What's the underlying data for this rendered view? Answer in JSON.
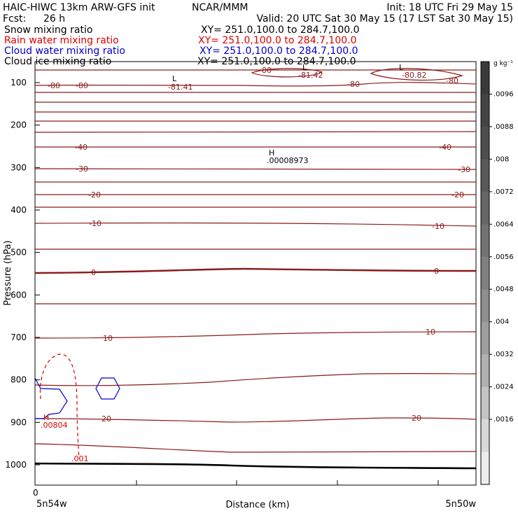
{
  "header": {
    "title": "HAIC-HIWC 13km ARW-GFS init",
    "center": "NCAR/MMM",
    "init": "Init: 18 UTC Fri 29 May 15",
    "fcst_label": "Fcst:",
    "fcst_value": "26 h",
    "valid": "Valid: 20 UTC Sat 30 May 15 (17 LST Sat 30 May 15)"
  },
  "legend": [
    {
      "name": "Snow mixing ratio",
      "xy": "XY= 251.0,100.0 to 284.7,100.0",
      "color": "#000000"
    },
    {
      "name": "Rain water mixing ratio",
      "xy": "XY= 251.0,100.0 to 284.7,100.0",
      "color": "#dd0000"
    },
    {
      "name": "Cloud water mixing ratio",
      "xy": "XY= 251.0,100.0 to 284.7,100.0",
      "color": "#0000cc"
    },
    {
      "name": "Cloud ice mixing ratio",
      "xy": "XY= 251.0,100.0 to 284.7,100.0",
      "color": "#000000"
    }
  ],
  "chart_data": {
    "type": "contour",
    "xlabel": "Distance (km)",
    "ylabel": "Pressure (hPa)",
    "x_tick_labels": [
      "0"
    ],
    "x_end_labels": {
      "left": "5n54w",
      "right": "5n50w"
    },
    "y_ticks": [
      100,
      200,
      300,
      400,
      500,
      600,
      700,
      800,
      900,
      1000
    ],
    "ylim": [
      50,
      1050
    ],
    "temperature_contours": {
      "color": "#8b1a1a",
      "labels": [
        "-80",
        "-40",
        "-30",
        "-20",
        "-10",
        "0",
        "10",
        "20"
      ],
      "extrema": [
        {
          "type": "L",
          "value": "-81.41"
        },
        {
          "type": "L",
          "value": "-81.42"
        },
        {
          "type": "L",
          "value": "-80.82"
        },
        {
          "type": "H",
          "value": ".00008973"
        }
      ]
    },
    "rain_water": {
      "color": "#dd0000",
      "label": ".001",
      "extremum": {
        "type": "H",
        "value": ".00804"
      }
    },
    "colorbar": {
      "unit": "g kg⁻¹",
      "labels": [
        ".0096",
        ".0088",
        ".008",
        ".0072",
        ".0064",
        ".0056",
        ".0048",
        ".004",
        ".0032",
        ".0024",
        ".0016"
      ],
      "colors": [
        "#3a3a3a",
        "#444444",
        "#4e4e4e",
        "#595959",
        "#656565",
        "#727272",
        "#808080",
        "#8e8e8e",
        "#9e9e9e",
        "#b0b0b0",
        "#c4c4c4",
        "#d8d8d8",
        "#ececec"
      ]
    }
  }
}
